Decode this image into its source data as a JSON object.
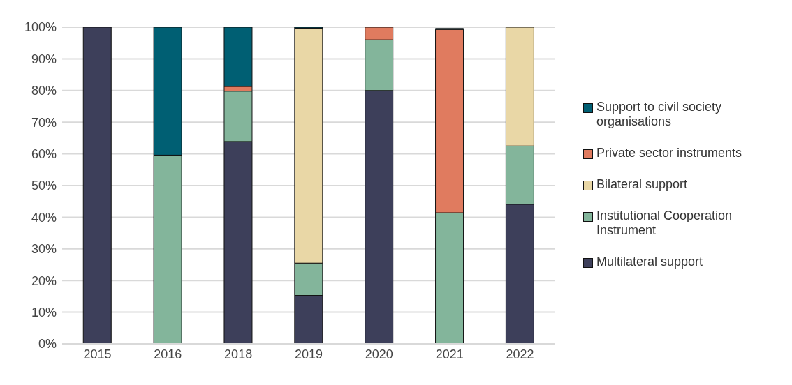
{
  "chart_data": {
    "type": "bar",
    "stacked": true,
    "categories": [
      "2015",
      "2016",
      "2018",
      "2019",
      "2020",
      "2021",
      "2022"
    ],
    "series": [
      {
        "name": "Multilateral support",
        "color": "#3d3f5a",
        "values": [
          100,
          0,
          63.9,
          15.3,
          80,
          null,
          44.1
        ]
      },
      {
        "name": "Institutional Cooperation Instrument",
        "color": "#83b59b",
        "values": [
          0,
          59.6,
          15.9,
          10.2,
          16,
          41.4,
          18.4
        ]
      },
      {
        "name": "Bilateral support",
        "color": "#e9d7a6",
        "values": [
          0,
          0,
          0,
          74.2,
          0,
          0,
          37.5
        ]
      },
      {
        "name": "Private sector instruments",
        "color": "#e07b5f",
        "values": [
          0,
          0,
          1.5,
          0,
          4,
          57.9,
          0
        ]
      },
      {
        "name": "Support to civil society organisations",
        "color": "#005f73",
        "values": [
          0,
          40.4,
          18.7,
          0.3,
          0,
          0.3,
          0
        ]
      }
    ],
    "ylim": [
      0,
      100
    ],
    "yticks": [
      {
        "value": 0,
        "label": "0%"
      },
      {
        "value": 10,
        "label": "10%"
      },
      {
        "value": 20,
        "label": "20%"
      },
      {
        "value": 30,
        "label": "30%"
      },
      {
        "value": 40,
        "label": "40%"
      },
      {
        "value": 50,
        "label": "50%"
      },
      {
        "value": 60,
        "label": "60%"
      },
      {
        "value": 70,
        "label": "70%"
      },
      {
        "value": 80,
        "label": "80%"
      },
      {
        "value": 90,
        "label": "90%"
      },
      {
        "value": 100,
        "label": "100%"
      }
    ],
    "grid": "y",
    "legend": "right"
  }
}
